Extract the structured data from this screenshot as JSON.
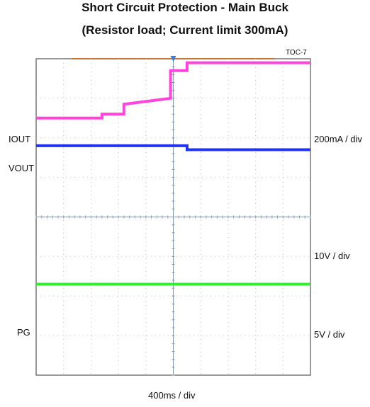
{
  "chart_data": {
    "type": "line",
    "title": "Short Circuit Protection - Main Buck",
    "subtitle": "(Resistor load; Current limit 300mA)",
    "figure_id": "TOC-7",
    "xlabel": "400ms / div",
    "x_divisions": 10,
    "y_divisions": 8,
    "grid": true,
    "series": [
      {
        "name": "IOUT",
        "color": "#ff44dd",
        "scale": "200mA / div",
        "points": [
          [
            0,
            6.5
          ],
          [
            2.4,
            6.5
          ],
          [
            2.4,
            6.6
          ],
          [
            3.2,
            6.6
          ],
          [
            3.2,
            6.85
          ],
          [
            4.9,
            7.0
          ],
          [
            4.9,
            7.7
          ],
          [
            5.5,
            7.7
          ],
          [
            5.5,
            7.9
          ],
          [
            10,
            7.9
          ]
        ]
      },
      {
        "name": "VOUT",
        "color": "#2233ee",
        "scale": "10V / div",
        "points": [
          [
            0,
            5.8
          ],
          [
            5.5,
            5.8
          ],
          [
            5.5,
            5.7
          ],
          [
            10,
            5.7
          ]
        ]
      },
      {
        "name": "PG",
        "color": "#33ee33",
        "scale": "5V / div",
        "points": [
          [
            0,
            2.3
          ],
          [
            10,
            2.3
          ]
        ]
      }
    ]
  }
}
